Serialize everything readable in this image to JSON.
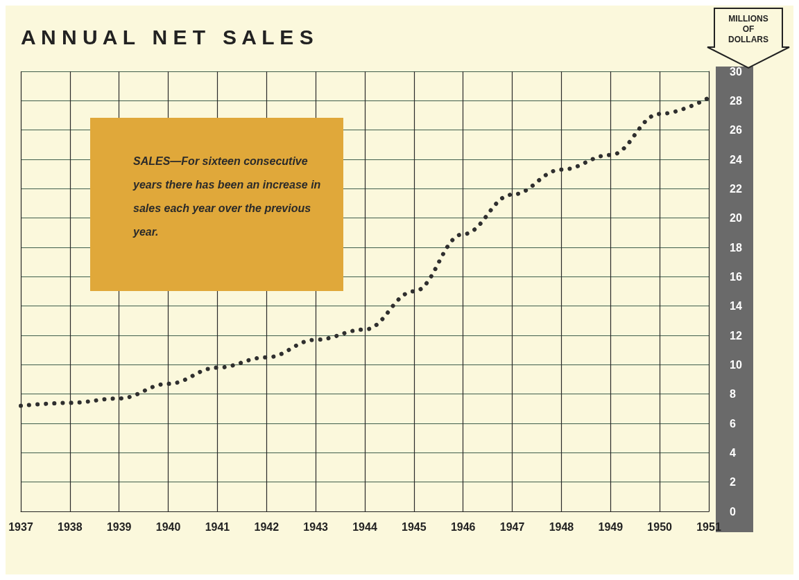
{
  "chart_data": {
    "type": "line",
    "title": "A N N U A L   N E T   S A L E S",
    "ylabel": "MILLIONS OF DOLLARS",
    "annotations": [
      "SALES—For sixteen consecutive years there has been an increase in sales each year over the previous year."
    ],
    "x": [
      1937,
      1938,
      1939,
      1940,
      1941,
      1942,
      1943,
      1944,
      1945,
      1946,
      1947,
      1948,
      1949,
      1950,
      1951
    ],
    "series": [
      {
        "color": "#2f2f2f",
        "values": [
          7.2,
          7.4,
          7.7,
          8.7,
          9.8,
          10.5,
          11.7,
          12.4,
          15.0,
          18.9,
          21.6,
          23.3,
          24.3,
          27.1,
          28.2
        ]
      }
    ],
    "xlim": [
      1937,
      1951
    ],
    "xticks": [
      1937,
      1938,
      1939,
      1940,
      1941,
      1942,
      1943,
      1944,
      1945,
      1946,
      1947,
      1948,
      1949,
      1950,
      1951
    ],
    "ylim": [
      0,
      30
    ],
    "yticks": [
      0,
      2,
      4,
      6,
      8,
      10,
      12,
      14,
      16,
      18,
      20,
      22,
      24,
      26,
      28,
      30
    ],
    "grid": true,
    "marker": "none",
    "line_style": "dotted"
  }
}
